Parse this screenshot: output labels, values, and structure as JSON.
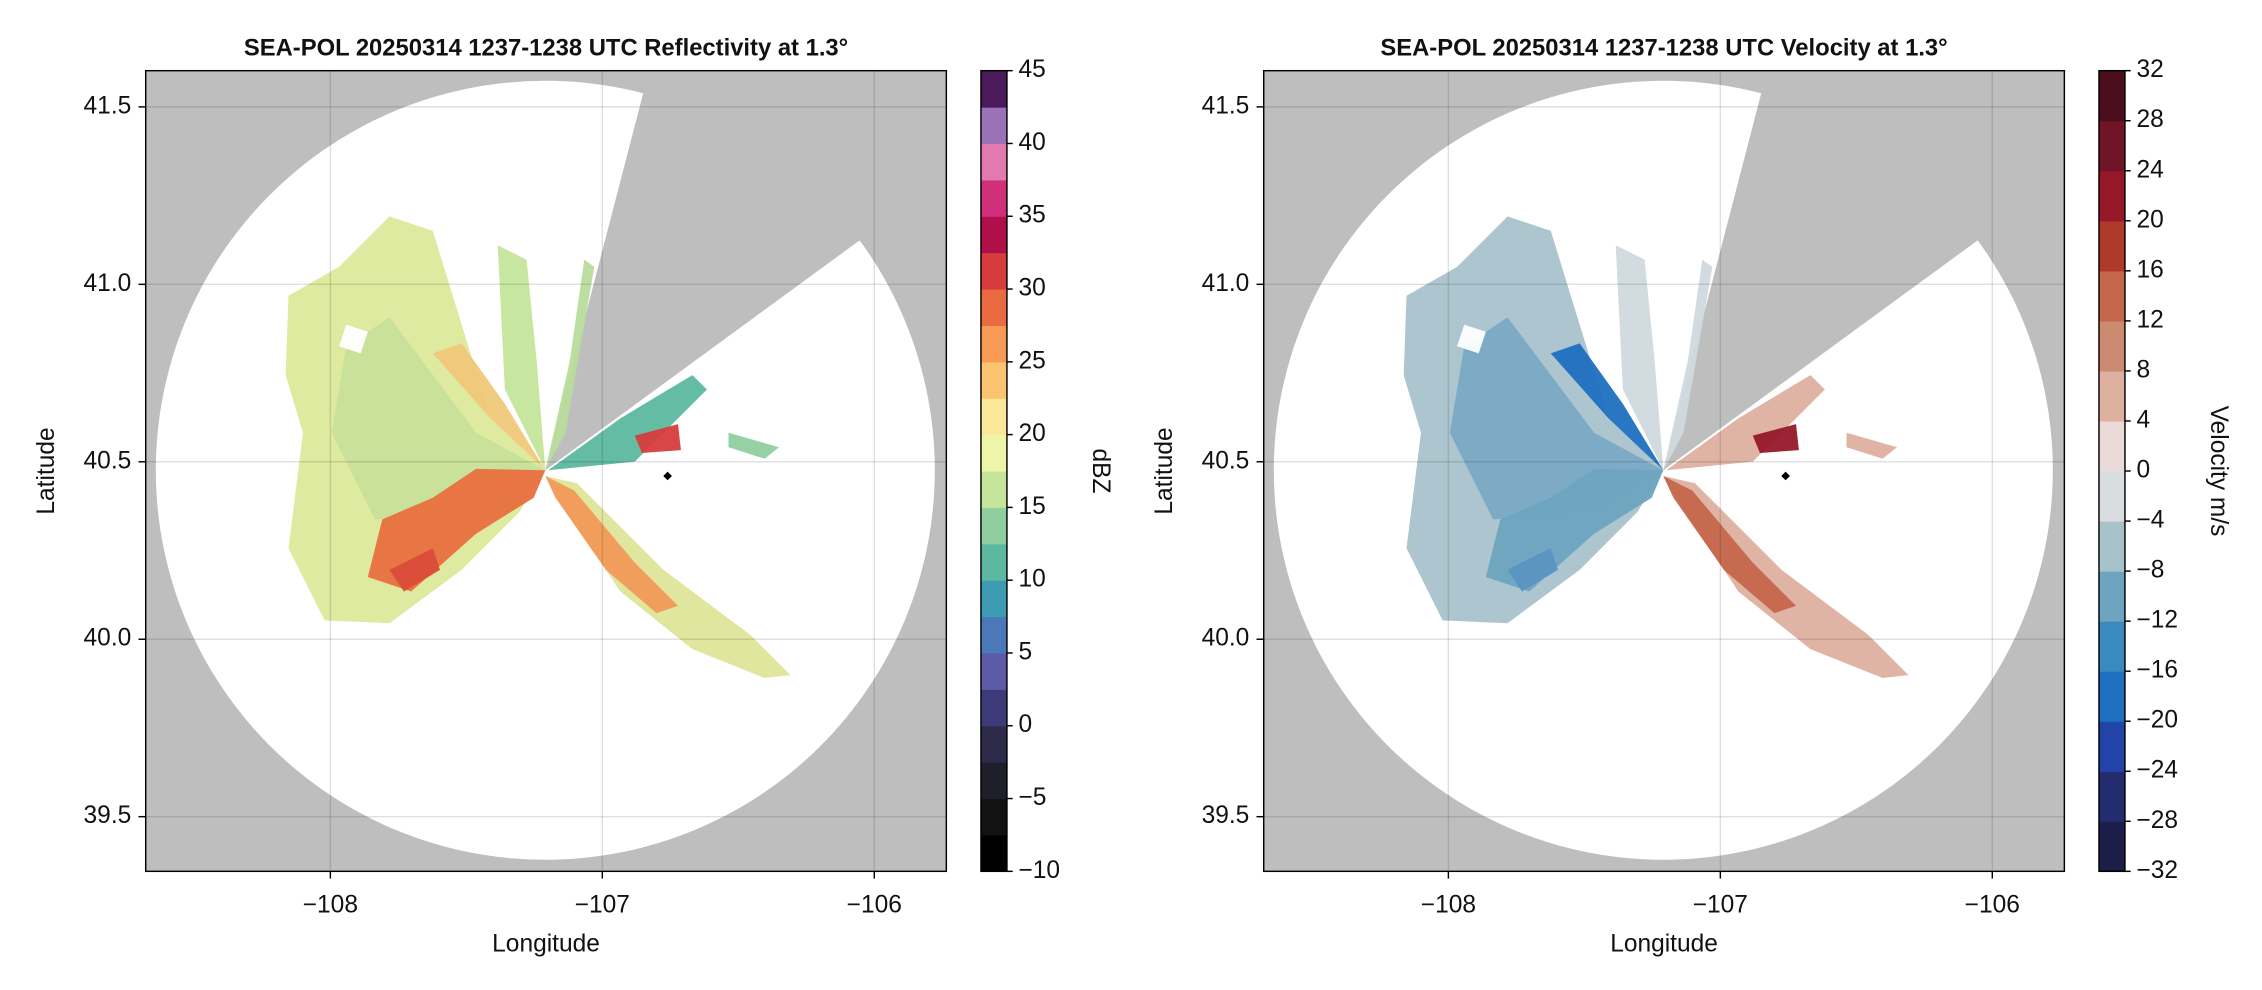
{
  "chart_data": [
    {
      "type": "ppi",
      "title": "SEA-POL 20250314 1237-1238 UTC Reflectivity at 1.3°",
      "xlabel": "Longitude",
      "ylabel": "Latitude",
      "xlim": [
        -108.679,
        -105.735
      ],
      "ylim": [
        39.346,
        41.602
      ],
      "xticks": [
        {
          "value": -108,
          "label": "−108"
        },
        {
          "value": -107,
          "label": "−107"
        },
        {
          "value": -106,
          "label": "−106"
        }
      ],
      "yticks": [
        39.5,
        {
          "value": 40,
          "label": "40.0"
        },
        40.5,
        {
          "value": 41,
          "label": "41.0"
        },
        41.5
      ],
      "grid": true,
      "marker": {
        "x": -106.76,
        "y": 40.46,
        "color": "#000000"
      },
      "colorbar": {
        "label": "dBZ",
        "lim": [
          -10,
          45
        ],
        "ticks": [
          {
            "value": -10,
            "label": "−10"
          },
          {
            "value": -5,
            "label": "−5"
          },
          0,
          5,
          10,
          15,
          20,
          25,
          30,
          35,
          40,
          45
        ],
        "colors": [
          "#000000",
          "#121212",
          "#1f1f2c",
          "#2d2a4a",
          "#3d3a7a",
          "#5b5ba8",
          "#4a78b8",
          "#3c9bb0",
          "#5cb8a0",
          "#8fcf9f",
          "#c4e59a",
          "#eef5a8",
          "#fbe79a",
          "#fbc470",
          "#f69a55",
          "#ea6a42",
          "#d63c3c",
          "#b0104a",
          "#d0307a",
          "#e27ab0",
          "#9a72b8",
          "#4a1a5a"
        ]
      }
    },
    {
      "type": "ppi",
      "title": "SEA-POL 20250314 1237-1238 UTC Velocity at 1.3°",
      "xlabel": "Longitude",
      "ylabel": "Latitude",
      "xlim": [
        -108.679,
        -105.735
      ],
      "ylim": [
        39.346,
        41.602
      ],
      "xticks": [
        {
          "value": -108,
          "label": "−108"
        },
        {
          "value": -107,
          "label": "−107"
        },
        {
          "value": -106,
          "label": "−106"
        }
      ],
      "yticks": [
        39.5,
        {
          "value": 40,
          "label": "40.0"
        },
        40.5,
        {
          "value": 41,
          "label": "41.0"
        },
        41.5
      ],
      "grid": true,
      "marker": {
        "x": -106.76,
        "y": 40.46,
        "color": "#000000"
      },
      "colorbar": {
        "label": "Velocity m/s",
        "lim": [
          -32,
          32
        ],
        "ticks": [
          {
            "value": -32,
            "label": "−32"
          },
          {
            "value": -28,
            "label": "−28"
          },
          {
            "value": -24,
            "label": "−24"
          },
          {
            "value": -20,
            "label": "−20"
          },
          {
            "value": -16,
            "label": "−16"
          },
          {
            "value": -12,
            "label": "−12"
          },
          {
            "value": -8,
            "label": "−8"
          },
          {
            "value": -4,
            "label": "−4"
          },
          0,
          4,
          8,
          12,
          16,
          20,
          24,
          28,
          32
        ],
        "colors": [
          "#1a1e48",
          "#232c6e",
          "#2244a8",
          "#1e6fc0",
          "#3a8ac0",
          "#6ea4c0",
          "#a8c2cc",
          "#d8dde0",
          "#ecdad8",
          "#ddb0a0",
          "#cc8a70",
          "#c4674a",
          "#b03a2a",
          "#951828",
          "#701428",
          "#4a0e1c"
        ]
      }
    }
  ]
}
